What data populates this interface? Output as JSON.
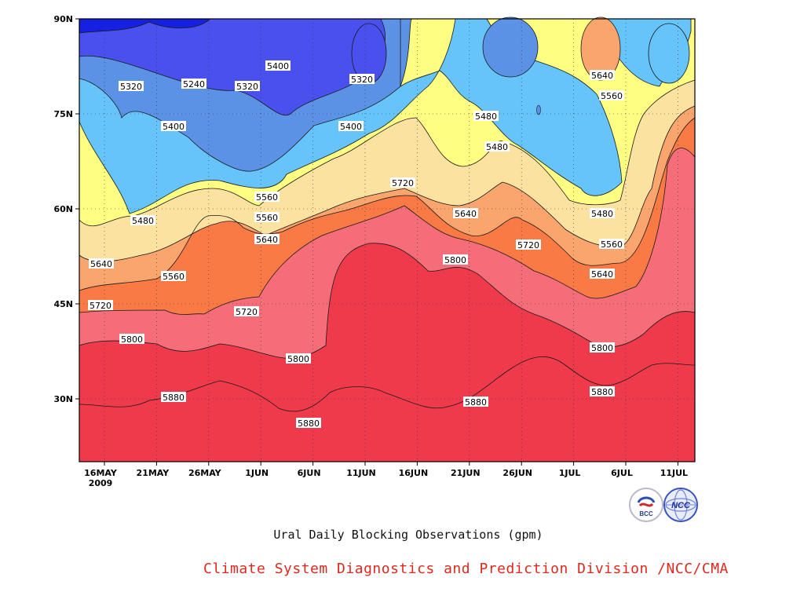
{
  "title": "Ural Daily Blocking Observations (gpm)",
  "credit": "Climate System Diagnostics and Prediction Division /NCC/CMA",
  "logos": [
    {
      "name": "bcc-logo",
      "text": "BCC"
    },
    {
      "name": "ncc-logo",
      "text": "NCC"
    }
  ],
  "chart_data": {
    "type": "heatmap",
    "subtype": "filled-contour",
    "x_axis": {
      "range": [
        "2009-05-14",
        "2009-07-14"
      ],
      "ticks": [
        "16MAY",
        "21MAY",
        "26MAY",
        "1JUN",
        "6JUN",
        "11JUN",
        "16JUN",
        "21JUN",
        "26JUN",
        "1JUL",
        "6JUL",
        "11JUL"
      ],
      "tick_year": "2009"
    },
    "y_axis": {
      "range": [
        "20N",
        "90N"
      ],
      "ticks": [
        "30N",
        "45N",
        "60N",
        "75N",
        "90N"
      ]
    },
    "grid": true,
    "contour_levels": [
      5240,
      5320,
      5400,
      5480,
      5560,
      5640,
      5720,
      5800,
      5880
    ],
    "fill_colors": [
      "#1620e0",
      "#4a50ee",
      "#5b92e6",
      "#66c4fb",
      "#fefe82",
      "#fce2a0",
      "#fba56e",
      "#f97a45",
      "#f66d7a",
      "#ef3a4c"
    ],
    "labels": [
      "5320",
      "5240",
      "5320",
      "5400",
      "5320",
      "5640",
      "5560",
      "5400",
      "5400",
      "5480",
      "5560",
      "5480",
      "5720",
      "5480",
      "5560",
      "5640",
      "5640",
      "5480",
      "5560",
      "5720",
      "5560",
      "5800",
      "5640",
      "5640",
      "5720",
      "5720",
      "5800",
      "5800",
      "5800",
      "5880",
      "5880",
      "5880",
      "5880"
    ]
  }
}
